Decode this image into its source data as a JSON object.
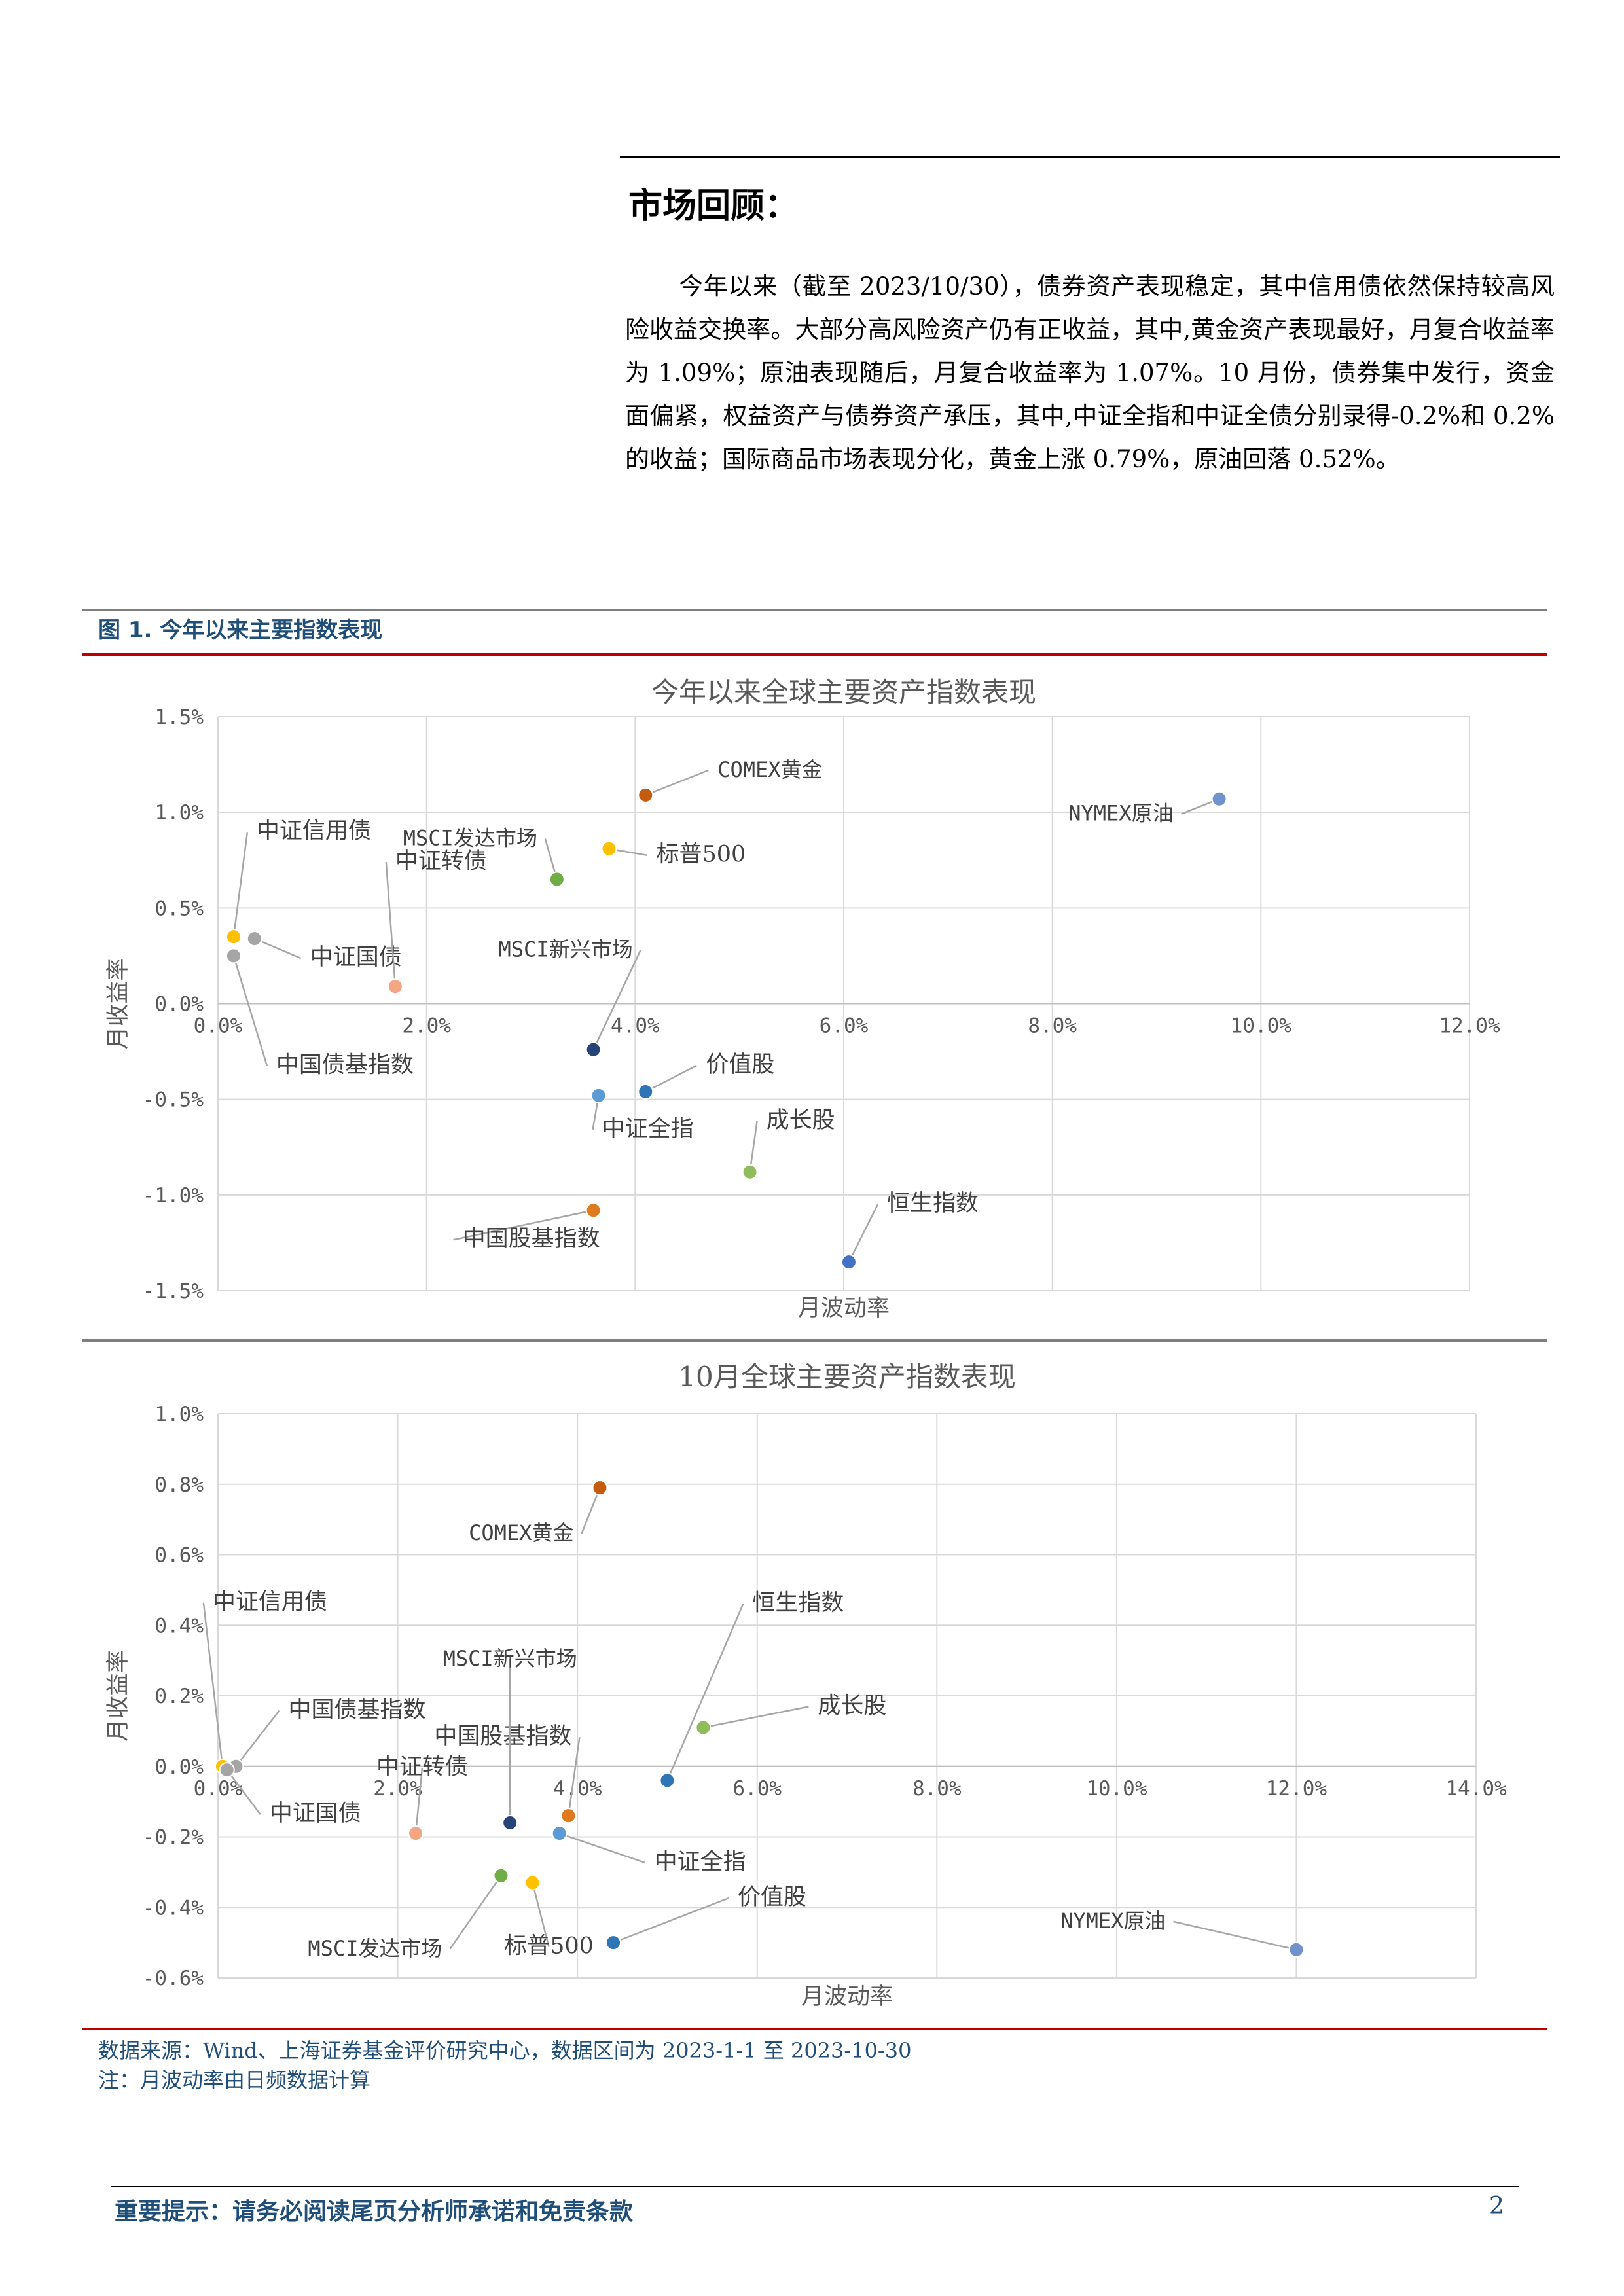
{
  "section": {
    "title": "市场回顾：",
    "paragraph": "今年以来（截至 2023/10/30），债券资产表现稳定，其中信用债依然保持较高风险收益交换率。大部分高风险资产仍有正收益，其中,黄金资产表现最好，月复合收益率为 1.09%；原油表现随后，月复合收益率为 1.07%。10 月份，债券集中发行，资金面偏紧，权益资产与债券资产承压，其中,中证全指和中证全债分别录得-0.2%和 0.2%的收益；国际商品市场表现分化，黄金上涨 0.79%，原油回落 0.52%。"
  },
  "figure": {
    "title": "图 1. 今年以来主要指数表现"
  },
  "colors": {
    "orange": "#E07A1F",
    "gold": "#D4A12A",
    "darkorange": "#C55A11",
    "blue": "#4472C4",
    "lightblue": "#5B9BD5",
    "navy": "#264478",
    "green": "#70AD47",
    "lightgreen": "#8FBC5C",
    "gray": "#A5A5A5",
    "yellow": "#FFC000",
    "salmon": "#F4A582",
    "mediumblue": "#2E75B6",
    "periwinkle": "#7093CC"
  },
  "chart_data": [
    {
      "type": "scatter",
      "title": "今年以来全球主要资产指数表现",
      "xlabel": "月波动率",
      "ylabel": "月收益率",
      "xlim": [
        0,
        12
      ],
      "ylim": [
        -1.5,
        1.5
      ],
      "xticks": [
        0,
        2,
        4,
        6,
        8,
        10,
        12
      ],
      "yticks": [
        -1.5,
        -1.0,
        -0.5,
        0.0,
        0.5,
        1.0,
        1.5
      ],
      "xtick_labels": [
        "0.0%",
        "2.0%",
        "4.0%",
        "6.0%",
        "8.0%",
        "10.0%",
        "12.0%"
      ],
      "ytick_labels": [
        "-1.5%",
        "-1.0%",
        "-0.5%",
        "0.0%",
        "0.5%",
        "1.0%",
        "1.5%"
      ],
      "grid": true,
      "points": [
        {
          "name": "COMEX黄金",
          "x": 4.1,
          "y": 1.09,
          "color": "#C55A11"
        },
        {
          "name": "NYMEX原油",
          "x": 9.6,
          "y": 1.07,
          "color": "#7093CC"
        },
        {
          "name": "标普500",
          "x": 3.75,
          "y": 0.81,
          "color": "#FFC000"
        },
        {
          "name": "MSCI发达市场",
          "x": 3.25,
          "y": 0.65,
          "color": "#70AD47"
        },
        {
          "name": "中证信用债",
          "x": 0.15,
          "y": 0.35,
          "color": "#FFC000"
        },
        {
          "name": "中证国债",
          "x": 0.35,
          "y": 0.34,
          "color": "#A5A5A5"
        },
        {
          "name": "中国债基指数",
          "x": 0.15,
          "y": 0.25,
          "color": "#A5A5A5"
        },
        {
          "name": "中证转债",
          "x": 1.7,
          "y": 0.09,
          "color": "#F4A582"
        },
        {
          "name": "MSCI新兴市场",
          "x": 3.6,
          "y": -0.24,
          "color": "#264478"
        },
        {
          "name": "价值股",
          "x": 4.1,
          "y": -0.46,
          "color": "#2E75B6"
        },
        {
          "name": "中证全指",
          "x": 3.65,
          "y": -0.48,
          "color": "#5B9BD5"
        },
        {
          "name": "成长股",
          "x": 5.1,
          "y": -0.88,
          "color": "#8FBC5C"
        },
        {
          "name": "中国股基指数",
          "x": 3.6,
          "y": -1.08,
          "color": "#E07A1F"
        },
        {
          "name": "恒生指数",
          "x": 6.05,
          "y": -1.35,
          "color": "#4472C4"
        }
      ]
    },
    {
      "type": "scatter",
      "title": "10月全球主要资产指数表现",
      "xlabel": "月波动率",
      "ylabel": "月收益率",
      "xlim": [
        0,
        14
      ],
      "ylim": [
        -0.6,
        1.0
      ],
      "xticks": [
        0,
        2,
        4,
        6,
        8,
        10,
        12,
        14
      ],
      "yticks": [
        -0.6,
        -0.4,
        -0.2,
        0.0,
        0.2,
        0.4,
        0.6,
        0.8,
        1.0
      ],
      "xtick_labels": [
        "0.0%",
        "2.0%",
        "4.0%",
        "6.0%",
        "8.0%",
        "10.0%",
        "12.0%",
        "14.0%"
      ],
      "ytick_labels": [
        "-0.6%",
        "-0.4%",
        "-0.2%",
        "0.0%",
        "0.2%",
        "0.4%",
        "0.6%",
        "0.8%",
        "1.0%"
      ],
      "grid": true,
      "points": [
        {
          "name": "COMEX黄金",
          "x": 4.25,
          "y": 0.79,
          "color": "#C55A11"
        },
        {
          "name": "成长股",
          "x": 5.4,
          "y": 0.11,
          "color": "#8FBC5C"
        },
        {
          "name": "中证信用债",
          "x": 0.05,
          "y": 0.0,
          "color": "#FFC000"
        },
        {
          "name": "中国债基指数",
          "x": 0.2,
          "y": 0.0,
          "color": "#A5A5A5"
        },
        {
          "name": "中证国债",
          "x": 0.1,
          "y": -0.01,
          "color": "#A5A5A5"
        },
        {
          "name": "恒生指数",
          "x": 5.0,
          "y": -0.04,
          "color": "#2E75B6"
        },
        {
          "name": "中国股基指数",
          "x": 3.9,
          "y": -0.14,
          "color": "#E07A1F"
        },
        {
          "name": "MSCI新兴市场",
          "x": 3.25,
          "y": -0.16,
          "color": "#264478"
        },
        {
          "name": "中证全指",
          "x": 3.8,
          "y": -0.19,
          "color": "#5B9BD5"
        },
        {
          "name": "中证转债",
          "x": 2.2,
          "y": -0.19,
          "color": "#F4A582"
        },
        {
          "name": "MSCI发达市场",
          "x": 3.15,
          "y": -0.31,
          "color": "#70AD47"
        },
        {
          "name": "标普500",
          "x": 3.5,
          "y": -0.33,
          "color": "#FFC000"
        },
        {
          "name": "价值股",
          "x": 4.4,
          "y": -0.5,
          "color": "#2E75B6"
        },
        {
          "name": "NYMEX原油",
          "x": 12.0,
          "y": -0.52,
          "color": "#7093CC"
        }
      ]
    }
  ],
  "notes": {
    "source": "数据来源：Wind、上海证券基金评价研究中心，数据区间为 2023-1-1 至 2023-10-30",
    "volatility": "注：月波动率由日频数据计算"
  },
  "footer": {
    "notice": "重要提示：请务必阅读尾页分析师承诺和免责条款",
    "page_number": "2"
  }
}
